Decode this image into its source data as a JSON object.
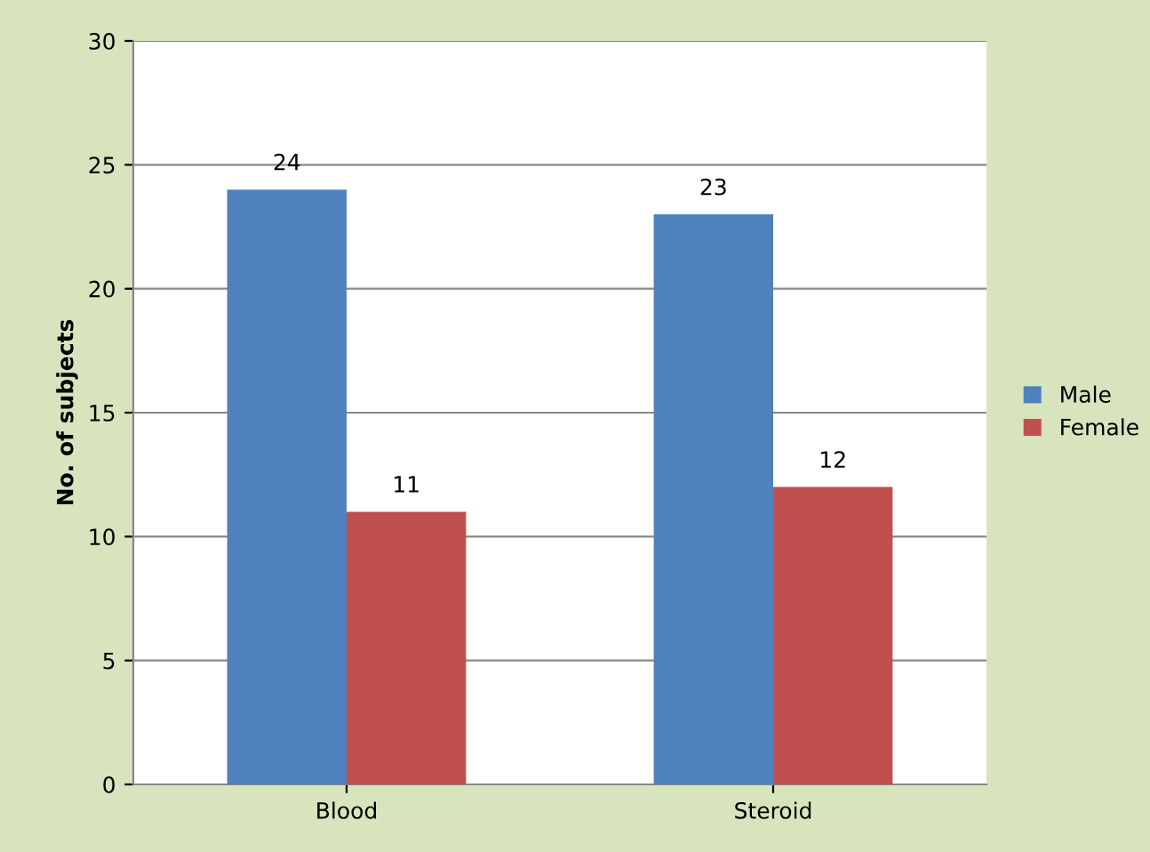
{
  "chart_data": {
    "type": "bar",
    "ylabel": "No. of subjects",
    "categories": [
      "Blood",
      "Steroid"
    ],
    "series": [
      {
        "name": "Male",
        "color": "#4f81bd",
        "values": [
          24,
          23
        ]
      },
      {
        "name": "Female",
        "color": "#c0504d",
        "values": [
          11,
          12
        ]
      }
    ],
    "ylim": [
      0,
      30
    ],
    "yticks": [
      0,
      5,
      10,
      15,
      20,
      25,
      30
    ],
    "grid": "y",
    "legend": "right",
    "data_labels": true
  }
}
